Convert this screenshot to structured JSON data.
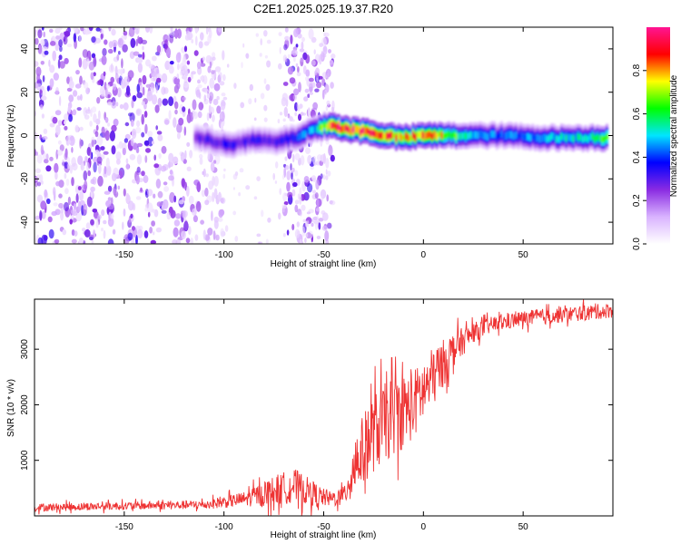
{
  "title": "C2E1.2025.025.19.37.R20",
  "chart_data": [
    {
      "type": "heatmap",
      "xlabel": "Height of straight line (km)",
      "ylabel": "Frequency (Hz)",
      "xlim": [
        -195,
        95
      ],
      "ylim": [
        -50,
        50
      ],
      "xticks": [
        -150,
        -100,
        -50,
        0,
        50
      ],
      "yticks": [
        -40,
        -20,
        0,
        20,
        40
      ],
      "colorbar": {
        "label": "Normalized spectral amplitude",
        "range": [
          0,
          1
        ],
        "ticks": [
          0.0,
          0.2,
          0.4,
          0.6,
          0.8
        ],
        "colors": [
          "#ffffff",
          "#d9b3ff",
          "#8a2be2",
          "#0000ff",
          "#00e5ff",
          "#00ff00",
          "#ffff00",
          "#ff0000",
          "#ff1493"
        ]
      },
      "ridge": {
        "description_points_x": [
          -115,
          -105,
          -95,
          -85,
          -75,
          -65,
          -55,
          -47,
          -40,
          -30,
          -20,
          -10,
          0,
          10,
          20,
          40,
          60,
          80,
          92
        ],
        "frequency": [
          -1,
          -3,
          -4,
          -2,
          -3,
          -1,
          3,
          5,
          3,
          2,
          0,
          -1,
          0,
          0,
          0,
          0,
          -1,
          -1,
          -1
        ],
        "amplitude": [
          0.25,
          0.3,
          0.3,
          0.3,
          0.3,
          0.35,
          0.45,
          0.8,
          0.9,
          0.85,
          0.8,
          0.75,
          0.8,
          0.7,
          0.5,
          0.4,
          0.45,
          0.5,
          0.6
        ]
      },
      "noise_regions_x": [
        [
          -195,
          -100
        ],
        [
          -70,
          -45
        ]
      ]
    },
    {
      "type": "line",
      "xlabel": "Height of straight line (km)",
      "ylabel": "SNR (10 * v/v)",
      "xlim": [
        -195,
        95
      ],
      "ylim": [
        0,
        3900
      ],
      "xticks": [
        -150,
        -100,
        -50,
        0,
        50
      ],
      "yticks": [
        1000,
        2000,
        3000
      ],
      "series": [
        {
          "name": "SNR",
          "color": "#ee3333",
          "x": [
            -195,
            -150,
            -110,
            -90,
            -75,
            -65,
            -55,
            -48,
            -40,
            -35,
            -25,
            -15,
            -5,
            5,
            15,
            25,
            35,
            50,
            70,
            95
          ],
          "y": [
            150,
            180,
            200,
            300,
            450,
            550,
            400,
            300,
            350,
            900,
            1500,
            1800,
            2000,
            2500,
            3000,
            3300,
            3450,
            3550,
            3620,
            3700
          ],
          "spread": [
            80,
            80,
            90,
            150,
            300,
            350,
            250,
            150,
            200,
            600,
            800,
            800,
            700,
            600,
            350,
            200,
            160,
            160,
            160,
            150
          ]
        }
      ]
    }
  ]
}
